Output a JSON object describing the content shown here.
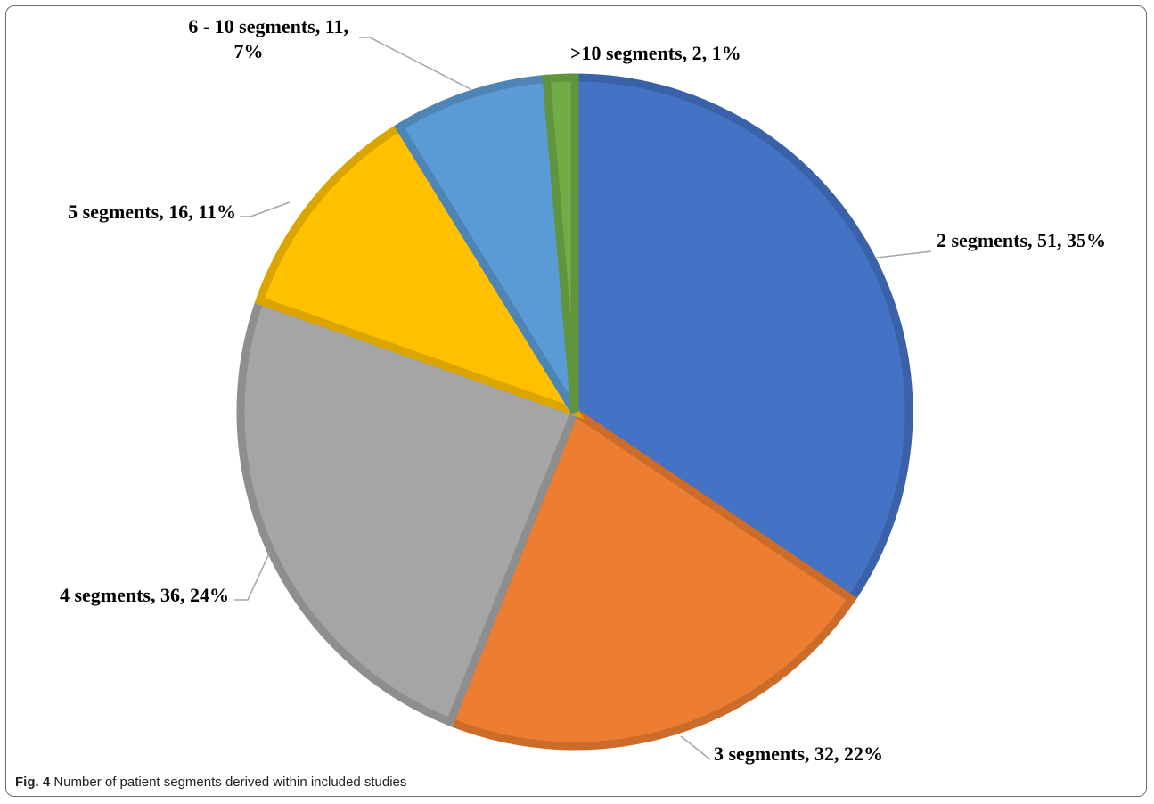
{
  "caption": {
    "label": "Fig. 4",
    "text": "Number of patient segments derived within included studies"
  },
  "chart_data": {
    "type": "pie",
    "title": "",
    "slices": [
      {
        "name": "2 segments",
        "value": 51,
        "percent": "35%",
        "label": "2 segments, 51, 35%",
        "color": "#4472c4"
      },
      {
        "name": "3 segments",
        "value": 32,
        "percent": "22%",
        "label": "3 segments, 32, 22%",
        "color": "#ed7d31"
      },
      {
        "name": "4 segments",
        "value": 36,
        "percent": "24%",
        "label": "4 segments, 36, 24%",
        "color": "#a5a5a5"
      },
      {
        "name": "5 segments",
        "value": 16,
        "percent": "11%",
        "label": "5 segments, 16, 11%",
        "color": "#ffc000"
      },
      {
        "name": "6 - 10 segments",
        "value": 11,
        "percent": "7%",
        "label_lines": [
          "6 - 10 segments, 11,",
          "7%"
        ],
        "color": "#5b9bd5"
      },
      {
        "name": ">10 segments",
        "value": 2,
        "percent": "1%",
        "label": ">10 segments, 2, 1%",
        "color": "#70ad47"
      }
    ],
    "legend": "none",
    "start_angle": "12 o'clock",
    "direction": "clockwise"
  }
}
